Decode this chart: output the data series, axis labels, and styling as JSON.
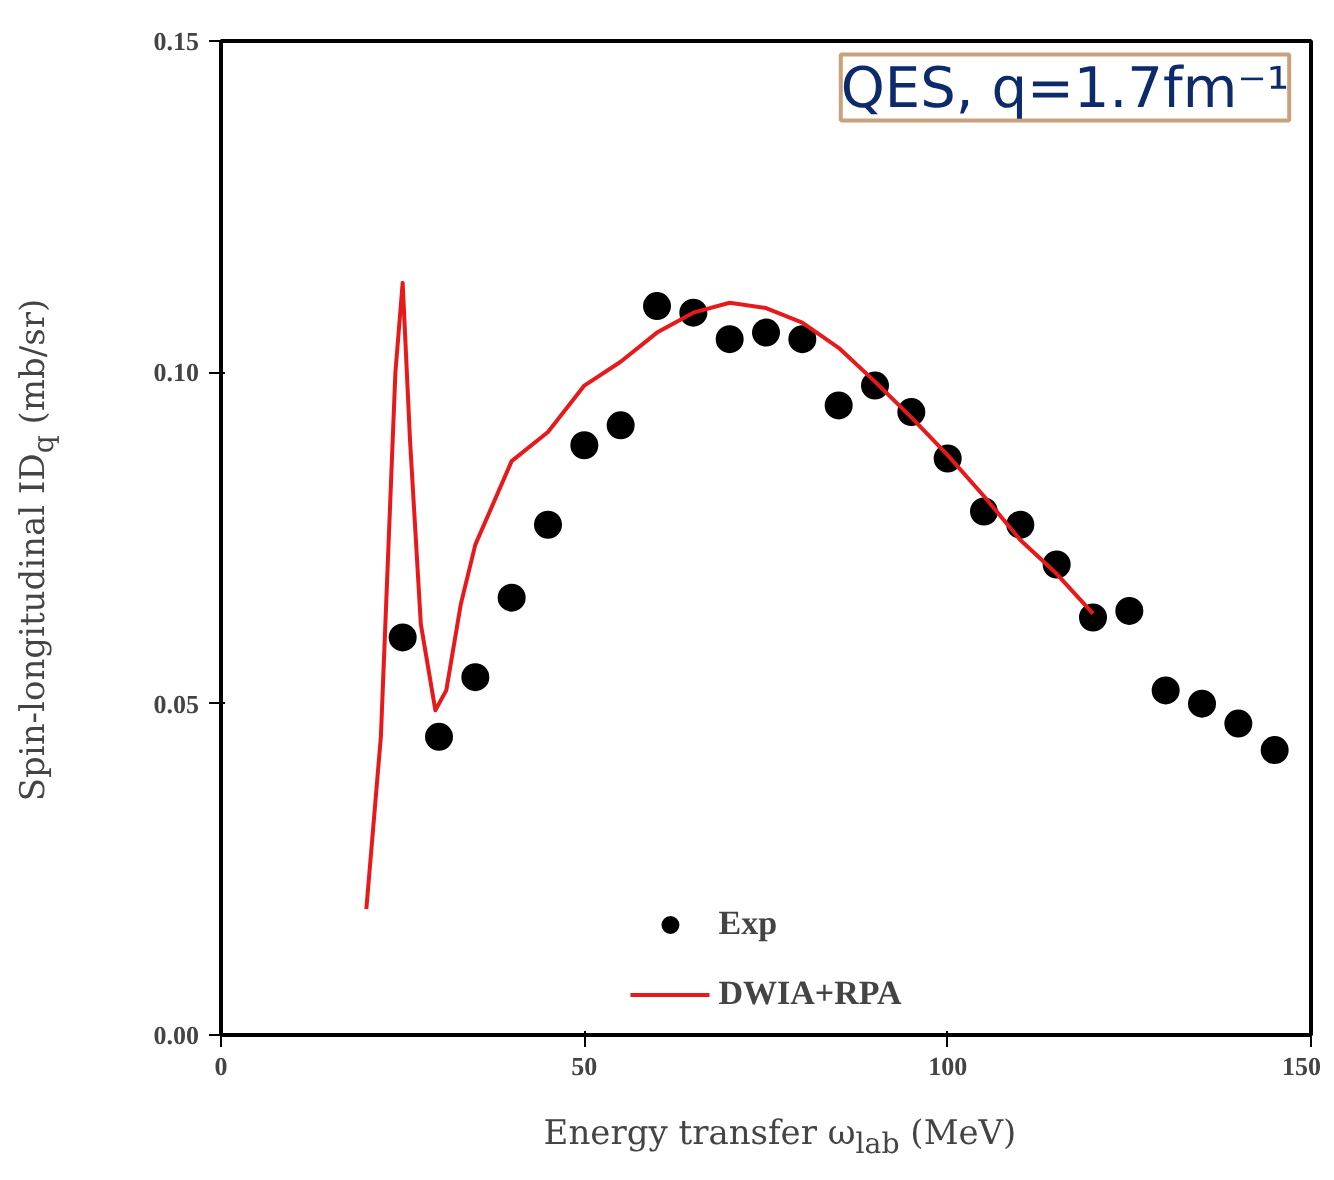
{
  "chart_data": {
    "type": "scatter",
    "title": "QES, q=1.7fm⁻¹",
    "xlabel": "Energy transfer ω$_{lab}$ (MeV)",
    "ylabel": "Spin-longitudinal ID$_{q}$ (mb/sr)",
    "xlim": [
      0,
      150
    ],
    "ylim": [
      0,
      0.15
    ],
    "xticks": [
      0,
      50,
      100,
      150
    ],
    "yticks": [
      {
        "value": 0,
        "label": "0.00"
      },
      {
        "value": 0.05,
        "label": "0.05"
      },
      {
        "value": 0.1,
        "label": "0.10"
      },
      {
        "value": 0.15,
        "label": "0.15"
      }
    ],
    "grid": false,
    "legend": "bottom",
    "series": [
      {
        "name": "Exp",
        "marker": "circle",
        "color": "#000000",
        "x": [
          25,
          30,
          35,
          40,
          45,
          50,
          55,
          60,
          65,
          70,
          75,
          80,
          85,
          90,
          95,
          100,
          105,
          110,
          115,
          120,
          125,
          130,
          135,
          140,
          145
        ],
        "values": [
          0.06,
          0.045,
          0.054,
          0.066,
          0.077,
          0.089,
          0.092,
          0.11,
          0.109,
          0.105,
          0.106,
          0.105,
          0.095,
          0.098,
          0.094,
          0.087,
          0.079,
          0.077,
          0.071,
          0.063,
          0.064,
          0.052,
          0.05,
          0.047,
          0.043
        ],
        "errors": [
          0.002,
          0.002,
          0.002,
          0.002,
          0.002,
          0.002,
          0.002,
          0.002,
          0.002,
          0.002,
          0.002,
          0.002,
          0.002,
          0.002,
          0.002,
          0.002,
          0.002,
          0.002,
          0.002,
          0.002,
          0.002,
          0.002,
          0.002,
          0.002,
          0.002
        ]
      },
      {
        "name": "DWIA+RPA",
        "type": "line",
        "line_style": "solid",
        "color": "#e8191b",
        "x": [
          20,
          22,
          24,
          25,
          26,
          27.5,
          29.5,
          31,
          33,
          35,
          40,
          45,
          50,
          55,
          60,
          65,
          70,
          75,
          80,
          85,
          90,
          95,
          100,
          105,
          110,
          115,
          120
        ],
        "values": [
          0.019,
          0.045,
          0.1,
          0.1135,
          0.09,
          0.062,
          0.049,
          0.052,
          0.065,
          0.074,
          0.0866,
          0.091,
          0.098,
          0.1016,
          0.106,
          0.109,
          0.1105,
          0.1097,
          0.1075,
          0.1037,
          0.0986,
          0.0932,
          0.0875,
          0.0813,
          0.0747,
          0.0696,
          0.0636
        ]
      }
    ]
  }
}
